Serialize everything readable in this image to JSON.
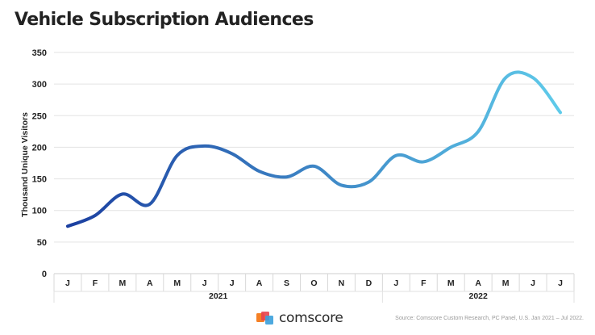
{
  "title": "Vehicle Subscription Audiences",
  "source": "Source: Comscore Custom Research, PC Panel, U.S. Jan 2021 – Jul 2022.",
  "logo": {
    "text": "comscore"
  },
  "colors": {
    "line_start": "#1b3fa0",
    "line_end": "#5fcbea",
    "grid": "#e3e3e3",
    "text": "#222222",
    "logo_orange": "#f58025",
    "logo_red": "#e8434e",
    "logo_blue": "#3aa0dc"
  },
  "chart_data": {
    "type": "line",
    "title": "Vehicle Subscription Audiences",
    "ylabel": "Thousand Unique Visitors",
    "xlabel": "",
    "ylim": [
      0,
      350
    ],
    "yticks": [
      0,
      50,
      100,
      150,
      200,
      250,
      300,
      350
    ],
    "categories": [
      "J",
      "F",
      "M",
      "A",
      "M",
      "J",
      "J",
      "A",
      "S",
      "O",
      "N",
      "D",
      "J",
      "F",
      "M",
      "A",
      "M",
      "J",
      "J"
    ],
    "year_groups": [
      {
        "label": "2021",
        "count": 12
      },
      {
        "label": "2022",
        "count": 7
      }
    ],
    "series": [
      {
        "values": [
          75,
          92,
          126,
          110,
          187,
          202,
          190,
          162,
          153,
          170,
          140,
          145,
          187,
          177,
          200,
          225,
          310,
          310,
          255
        ]
      }
    ],
    "grid": true,
    "legend": "none"
  }
}
